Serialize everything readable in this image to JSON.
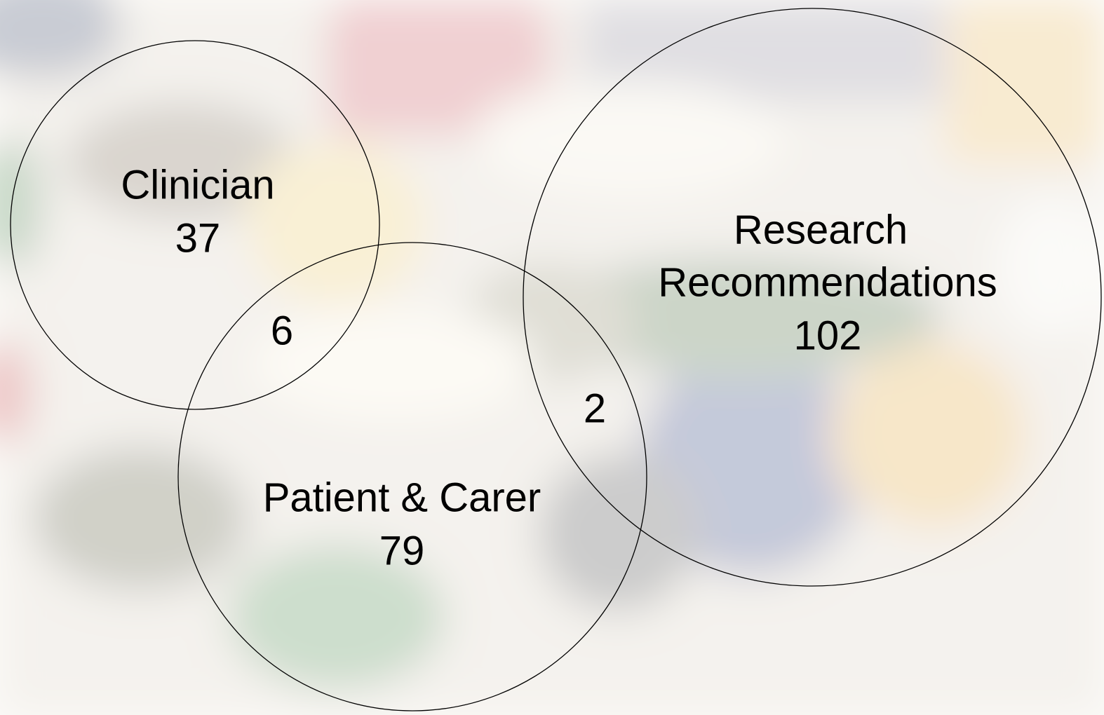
{
  "sets": [
    {
      "label": [
        "Clinician"
      ],
      "count": "37"
    },
    {
      "label": [
        "Patient & Carer"
      ],
      "count": "79"
    },
    {
      "label": [
        "Research",
        "Recommendations"
      ],
      "count": "102"
    }
  ],
  "overlaps": [
    {
      "count": "6"
    },
    {
      "count": "2"
    }
  ]
}
